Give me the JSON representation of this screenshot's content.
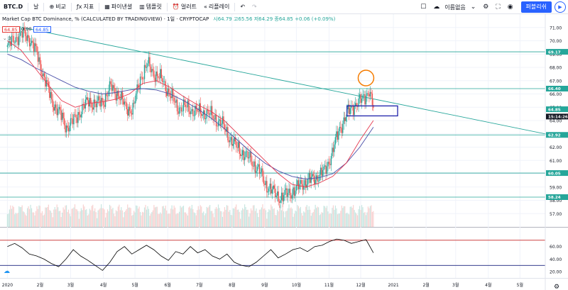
{
  "toolbar": {
    "symbol": "BTC.D",
    "interval": "날",
    "compare_label": "비교",
    "indicators_label": "지표",
    "financials_label": "파이낸셜",
    "templates_label": "템플릿",
    "alert_label": "얼러트",
    "replay_label": "리플레이",
    "chart_name": "이름없음",
    "publish_label": "퍼블리쉬",
    "icons": [
      "plus-circle-icon",
      "indicators-icon",
      "financials-icon",
      "templates-icon",
      "alert-icon",
      "replay-icon",
      "undo-icon",
      "redo-icon",
      "layout-icon",
      "cloud-icon",
      "settings-icon",
      "fullscreen-icon",
      "camera-icon",
      "play-icon"
    ]
  },
  "legend": {
    "title": "Market Cap BTC Dominance, %  (CALCULATED BY TRADINGVIEW) · 1일 · CRYPTOCAP",
    "ohlc": "시64.79  고65.56  저64.29  종64.85  +0.06 (+0.09%)",
    "badge_left": "64.85",
    "badge_mid": "0.00",
    "badge_right": "64.85",
    "collapse": "3"
  },
  "colors": {
    "up": "#26a69a",
    "down": "#ef5350",
    "ma_fast": "#e53950",
    "ma_slow": "#4a4fa8",
    "hline": "#26a69a",
    "trendline": "#26a69a",
    "circle": "#f57c00",
    "box": "#1e22aa",
    "rsi": "#000000",
    "rsi_upper": "#c62828",
    "rsi_lower": "#1a237e"
  },
  "chart_data": [
    {
      "type": "candlestick",
      "title": "Market Cap BTC Dominance, %",
      "x_ticks": [
        "2020",
        "2월",
        "3월",
        "4월",
        "5월",
        "6월",
        "7월",
        "8월",
        "9월",
        "10월",
        "11월",
        "12월",
        "2021",
        "2월",
        "3월",
        "4월",
        "5월"
      ],
      "ylim": [
        56,
        72
      ],
      "y_ticks": [
        57,
        58,
        59,
        60,
        61,
        62,
        63,
        64,
        65,
        66,
        67,
        68,
        69,
        70,
        71
      ],
      "price_labels": [
        {
          "text": "69.17",
          "value": 69.17
        },
        {
          "text": "66.40",
          "value": 66.4
        },
        {
          "text": "64.85",
          "value": 64.85
        },
        {
          "text": "15:14:26",
          "value": 64.3
        },
        {
          "text": "62.92",
          "value": 62.92
        },
        {
          "text": "60.05",
          "value": 60.05
        },
        {
          "text": "58.24",
          "value": 58.24
        }
      ],
      "horizontal_lines": [
        69.17,
        66.4,
        62.92,
        60.05,
        58.24
      ],
      "trendline": {
        "start": [
          "2020-01-15",
          71.0
        ],
        "end": [
          "2021-05-31",
          62.9
        ]
      },
      "closes": [
        [
          "2020-01-01",
          69.5
        ],
        [
          "2020-01-08",
          70.2
        ],
        [
          "2020-01-15",
          70.5
        ],
        [
          "2020-01-22",
          70.2
        ],
        [
          "2020-01-29",
          69.0
        ],
        [
          "2020-02-05",
          67.2
        ],
        [
          "2020-02-12",
          65.5
        ],
        [
          "2020-02-19",
          64.6
        ],
        [
          "2020-02-26",
          63.5
        ],
        [
          "2020-03-04",
          64.0
        ],
        [
          "2020-03-11",
          64.8
        ],
        [
          "2020-03-18",
          65.5
        ],
        [
          "2020-03-25",
          65.2
        ],
        [
          "2020-04-01",
          65.5
        ],
        [
          "2020-04-08",
          66.5
        ],
        [
          "2020-04-15",
          66.0
        ],
        [
          "2020-04-22",
          65.0
        ],
        [
          "2020-04-29",
          64.8
        ],
        [
          "2020-05-06",
          67.2
        ],
        [
          "2020-05-13",
          68.2
        ],
        [
          "2020-05-20",
          67.5
        ],
        [
          "2020-05-27",
          67.0
        ],
        [
          "2020-06-03",
          66.0
        ],
        [
          "2020-06-10",
          65.0
        ],
        [
          "2020-06-17",
          65.0
        ],
        [
          "2020-06-24",
          64.8
        ],
        [
          "2020-07-01",
          64.6
        ],
        [
          "2020-07-08",
          64.6
        ],
        [
          "2020-07-15",
          64.2
        ],
        [
          "2020-07-22",
          63.8
        ],
        [
          "2020-07-29",
          62.8
        ],
        [
          "2020-08-05",
          62.0
        ],
        [
          "2020-08-12",
          61.5
        ],
        [
          "2020-08-19",
          61.0
        ],
        [
          "2020-08-26",
          60.3
        ],
        [
          "2020-09-02",
          59.2
        ],
        [
          "2020-09-09",
          58.6
        ],
        [
          "2020-09-16",
          58.2
        ],
        [
          "2020-09-23",
          58.5
        ],
        [
          "2020-09-30",
          58.8
        ],
        [
          "2020-10-07",
          59.3
        ],
        [
          "2020-10-14",
          59.5
        ],
        [
          "2020-10-21",
          59.8
        ],
        [
          "2020-10-28",
          60.2
        ],
        [
          "2020-11-04",
          61.6
        ],
        [
          "2020-11-11",
          63.4
        ],
        [
          "2020-11-18",
          64.5
        ],
        [
          "2020-11-25",
          65.2
        ],
        [
          "2020-12-02",
          65.5
        ],
        [
          "2020-12-09",
          66.3
        ],
        [
          "2020-12-13",
          64.85
        ]
      ],
      "ma_fast": [
        70.0,
        69.3,
        68.0,
        66.7,
        65.5,
        65.0,
        65.3,
        65.4,
        65.6,
        66.0,
        66.8,
        67.0,
        66.5,
        65.8,
        65.2,
        64.7,
        64.0,
        63.0,
        62.0,
        61.0,
        60.0,
        59.2,
        59.0,
        59.3,
        59.8,
        60.8,
        62.5,
        64.0
      ],
      "ma_slow": [
        69.0,
        68.6,
        68.0,
        67.5,
        67.0,
        66.5,
        66.2,
        66.0,
        66.1,
        66.3,
        66.4,
        66.3,
        66.0,
        65.5,
        64.9,
        64.2,
        63.4,
        62.5,
        61.6,
        60.8,
        60.2,
        59.8,
        59.6,
        59.7,
        60.0,
        60.8,
        62.0,
        63.5
      ]
    },
    {
      "type": "line",
      "title": "RSI",
      "ylim": [
        10,
        80
      ],
      "y_ticks": [
        20,
        40,
        60
      ],
      "upper_level": 70,
      "lower_level": 30,
      "values": [
        60,
        65,
        58,
        48,
        45,
        40,
        33,
        28,
        40,
        55,
        45,
        38,
        30,
        22,
        35,
        52,
        60,
        48,
        55,
        62,
        55,
        45,
        38,
        52,
        48,
        60,
        50,
        55,
        45,
        40,
        48,
        35,
        30,
        28,
        35,
        45,
        55,
        42,
        48,
        55,
        58,
        52,
        60,
        62,
        68,
        72,
        70,
        65,
        68,
        71,
        50
      ]
    }
  ]
}
